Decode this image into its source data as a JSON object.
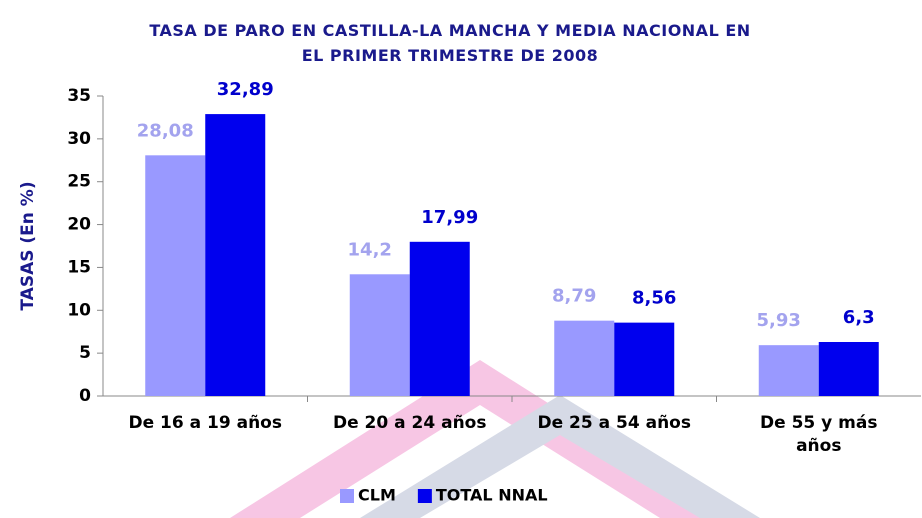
{
  "chart_data": {
    "type": "bar",
    "title": "TASA DE PARO EN CASTILLA-LA MANCHA Y MEDIA NACIONAL EN EL PRIMER TRIMESTRE DE 2008",
    "y_label": "TASAS (En %)",
    "categories": [
      "De 16 a 19 años",
      "De 20 a 24 años",
      "De 25 a 54 años",
      "De 55 y más años"
    ],
    "series": [
      {
        "name": "CLM",
        "color": "#9999ff",
        "label_color": "#a3a3ee",
        "values": [
          28.08,
          14.2,
          8.79,
          5.93
        ],
        "value_labels": [
          "28,08",
          "14,2",
          "8,79",
          "5,93"
        ]
      },
      {
        "name": "TOTAL NNAL",
        "color": "#0000ee",
        "label_color": "#0000cc",
        "values": [
          32.89,
          17.99,
          8.56,
          6.3
        ],
        "value_labels": [
          "32,89",
          "17,99",
          "8,56",
          "6,3"
        ]
      }
    ],
    "ylim": [
      0,
      35
    ],
    "yticks": [
      0,
      5,
      10,
      15,
      20,
      25,
      30,
      35
    ],
    "grid": false,
    "legend": "bottom"
  }
}
